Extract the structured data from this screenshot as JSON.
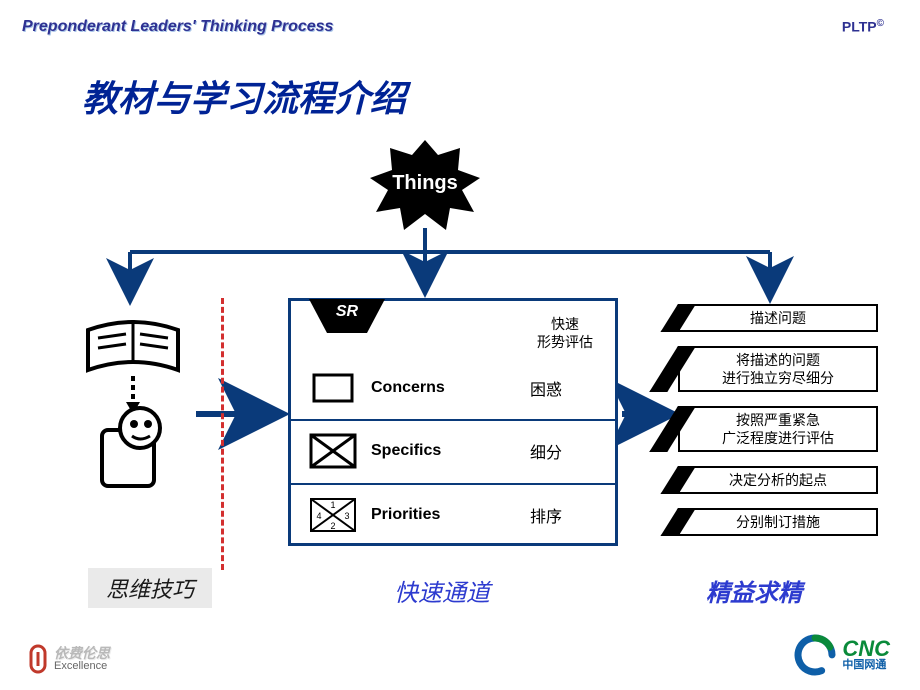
{
  "header": {
    "left": "Preponderant Leaders' Thinking Process",
    "right": "PLTP",
    "right_sup": "©"
  },
  "title": "教材与学习流程介绍",
  "badge_label": "Things",
  "colors": {
    "primary": "#0a3a7a",
    "title": "#002395",
    "accent_red": "#d32f2f",
    "grey_box": "#eaeaea",
    "blue_label": "#2d3bcf",
    "cnc_green": "#0a8a3a",
    "cnc_blue": "#0e5fa8"
  },
  "srbox": {
    "tab": "SR",
    "sub_line1": "快速",
    "sub_line2": "形势评估",
    "rows": [
      {
        "en": "Concerns",
        "zh": "困惑",
        "icon": "empty-box"
      },
      {
        "en": "Specifics",
        "zh": "细分",
        "icon": "x-box"
      },
      {
        "en": "Priorities",
        "zh": "排序",
        "icon": "x-box-numbered"
      }
    ]
  },
  "right_items": [
    "描述问题",
    "将描述的问题\n进行独立穷尽细分",
    "按照严重紧急\n广泛程度进行评估",
    "决定分析的起点",
    "分别制订措施"
  ],
  "bottom_labels": {
    "left": "思维技巧",
    "middle": "快速通道",
    "right": "精益求精"
  },
  "footer_left": {
    "line1": "依费伦思",
    "line2": "Excellence"
  },
  "footer_right": {
    "big": "CNC",
    "small": "中国网通"
  }
}
